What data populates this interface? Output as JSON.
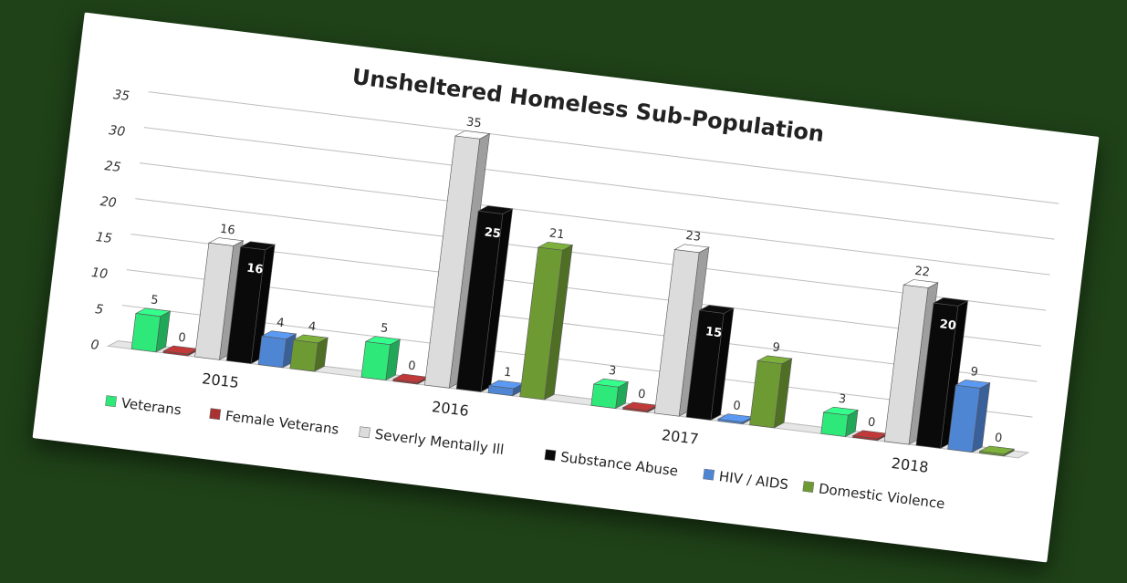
{
  "chart_data": {
    "type": "bar",
    "title": "Unsheltered Homeless Sub-Population",
    "categories": [
      "2015",
      "2016",
      "2017",
      "2018"
    ],
    "series": [
      {
        "name": "Veterans",
        "values": [
          5,
          5,
          3,
          3
        ],
        "color": "#2ee87a"
      },
      {
        "name": "Female Veterans",
        "values": [
          0,
          0,
          0,
          0
        ],
        "color": "#a83232"
      },
      {
        "name": "Severly Mentally Ill",
        "values": [
          16,
          35,
          23,
          22
        ],
        "color": "#dcdcdc"
      },
      {
        "name": "Substance Abuse",
        "values": [
          16,
          25,
          15,
          20
        ],
        "color": "#0a0a0a"
      },
      {
        "name": "HIV / AIDS",
        "values": [
          4,
          1,
          0,
          9
        ],
        "color": "#4f86d4"
      },
      {
        "name": "Domestic Violence",
        "values": [
          4,
          21,
          9,
          0
        ],
        "color": "#6e9a34"
      }
    ],
    "yticks": [
      "0",
      "5",
      "10",
      "15",
      "20",
      "25",
      "30",
      "35"
    ],
    "ylim": [
      0,
      35
    ],
    "grid": true,
    "legend": "bottom"
  }
}
